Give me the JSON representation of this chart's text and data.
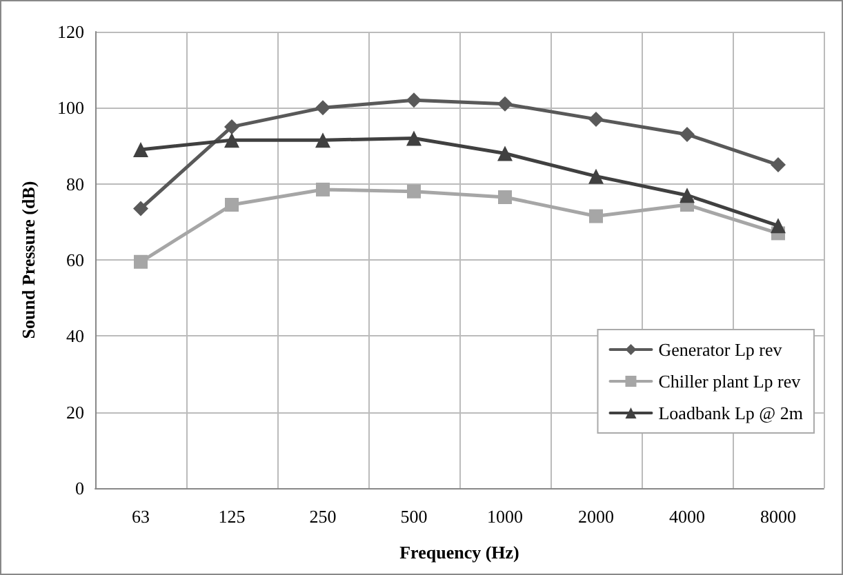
{
  "chart_data": {
    "type": "line",
    "xlabel": "Frequency (Hz)",
    "ylabel": "Sound Pressure (dB)",
    "categories": [
      "63",
      "125",
      "250",
      "500",
      "1000",
      "2000",
      "4000",
      "8000"
    ],
    "series": [
      {
        "name": "Generator Lp rev",
        "color": "#595959",
        "marker": "diamond",
        "values": [
          73.5,
          95,
          100,
          102,
          101,
          97,
          93,
          85
        ]
      },
      {
        "name": "Chiller plant Lp rev",
        "color": "#a6a6a6",
        "marker": "square",
        "values": [
          59.5,
          74.5,
          78.5,
          78,
          76.5,
          71.5,
          74.5,
          67
        ]
      },
      {
        "name": "Loadbank Lp @ 2m",
        "color": "#404040",
        "marker": "triangle",
        "values": [
          89,
          91.5,
          91.5,
          92,
          88,
          82,
          77,
          69
        ]
      }
    ],
    "ylim": [
      0,
      120
    ],
    "yticks": [
      0,
      20,
      40,
      60,
      80,
      100,
      120
    ],
    "grid": true,
    "legend": "right",
    "line_style": "solid"
  }
}
